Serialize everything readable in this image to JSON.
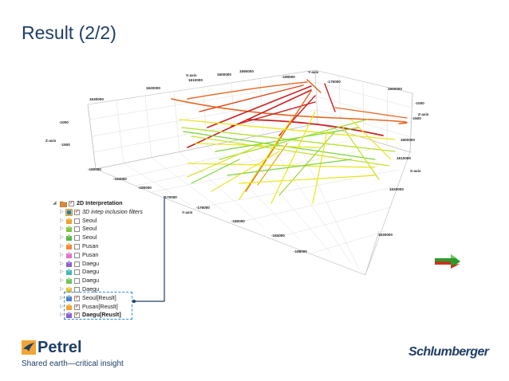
{
  "slide": {
    "title": "Result (2/2)"
  },
  "viewer": {
    "axis_names": {
      "x": "X-axis",
      "y": "Y-axis",
      "y2": "Y-axis",
      "z": "Z-axis",
      "z2": "Z-axis",
      "x2": "X-axis"
    },
    "tick_labels": {
      "x_top": [
        "1630000",
        "1620000",
        "1610000",
        "1600000"
      ],
      "y_top": [
        "1590000",
        "-180000",
        "-170000"
      ],
      "z_left": [
        "-1000",
        "-1500"
      ],
      "right": [
        "1600000",
        "-1000",
        "-1500",
        "1600000",
        "1610000",
        "1620000",
        "1630000"
      ],
      "y_bottom": [
        "-180000",
        "-184000",
        "-180000",
        "-170000",
        "-176000",
        "-180000",
        "-184000",
        "-188000"
      ]
    },
    "line_colors": {
      "red": "#cc1f1f",
      "orange": "#e8641e",
      "yellow": "#e8e61a",
      "green": "#7dd43a"
    }
  },
  "tree": {
    "items": [
      {
        "label": "2D Interpretation",
        "checked": true,
        "icon": "folder-icon",
        "level": 0
      },
      {
        "label": "3D intep inclusion filters",
        "checked": true,
        "icon": "filter-icon",
        "level": 1,
        "italic": true
      },
      {
        "label": "Seoul",
        "checked": false,
        "icon": "interpretation-orange-icon",
        "level": 1
      },
      {
        "label": "Seoul",
        "checked": false,
        "icon": "interpretation-green-icon",
        "level": 1
      },
      {
        "label": "Seoul",
        "checked": false,
        "icon": "interpretation-green-icon",
        "level": 1
      },
      {
        "label": "Pusan",
        "checked": false,
        "icon": "interpretation-orange-icon",
        "level": 1
      },
      {
        "label": "Pusan",
        "checked": false,
        "icon": "interpretation-pink-icon",
        "level": 1
      },
      {
        "label": "Daegu",
        "checked": false,
        "icon": "interpretation-purple-icon",
        "level": 1
      },
      {
        "label": "Daegu",
        "checked": false,
        "icon": "interpretation-teal-icon",
        "level": 1
      },
      {
        "label": "Daegu",
        "checked": false,
        "icon": "interpretation-green-icon",
        "level": 1
      },
      {
        "label": "Daegu",
        "checked": false,
        "icon": "interpretation-yellow-icon",
        "level": 1
      },
      {
        "label": "Seoul[Reuslt]",
        "checked": true,
        "icon": "interpretation-blue-icon",
        "level": 1
      },
      {
        "label": "Pusan[Reuslt]",
        "checked": true,
        "icon": "interpretation-orange-icon",
        "level": 1
      },
      {
        "label": "Daegu[Reuslt]",
        "checked": true,
        "icon": "interpretation-purple-icon",
        "level": 1,
        "bold": true
      }
    ]
  },
  "branding": {
    "product": "Petrel",
    "tagline": "Shared earth—critical insight",
    "company": "Schlumberger"
  }
}
